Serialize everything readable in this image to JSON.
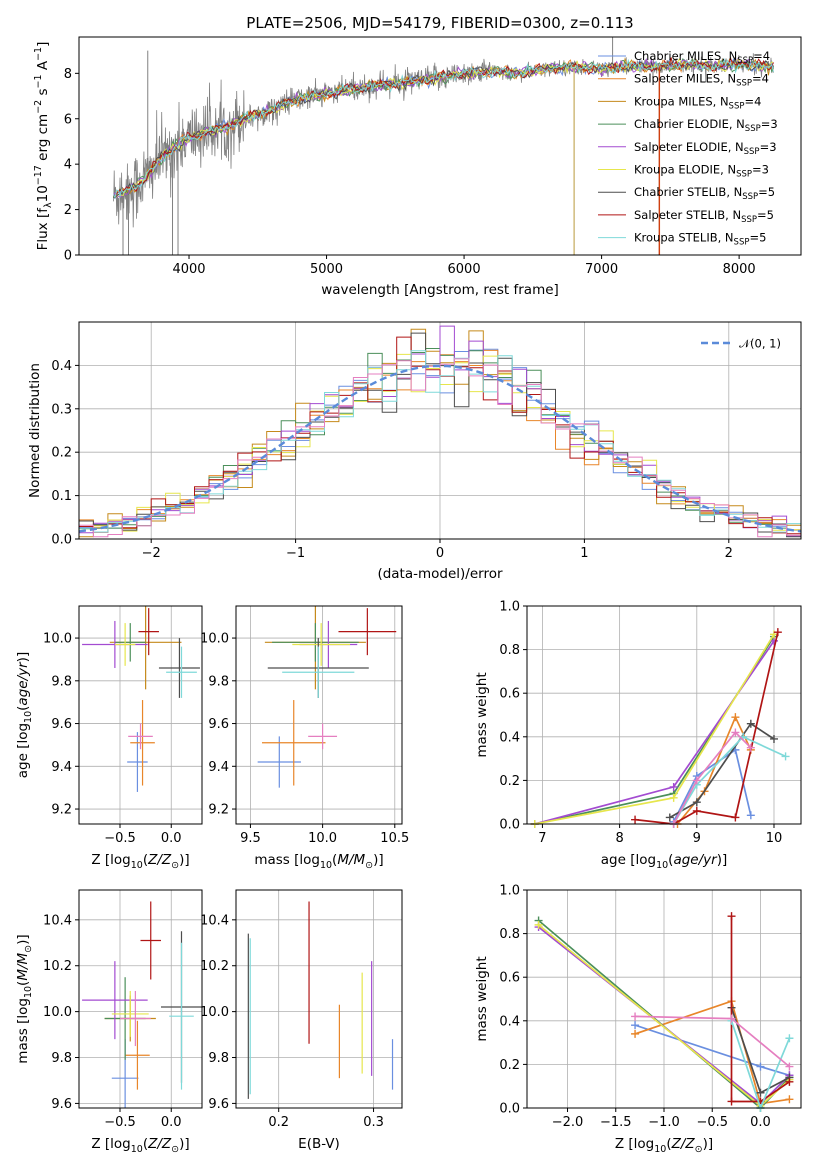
{
  "figure_title": "PLATE=2506, MJD=54179, FIBERID=0300, z=0.113",
  "colors": {
    "data_spectrum": "#808080",
    "Chabrier MILES": "#6a8fe0",
    "Salpeter MILES": "#e8862a",
    "Kroupa MILES": "#c58a1b",
    "Chabrier ELODIE": "#4b8f5a",
    "Salpeter ELODIE": "#a34bd1",
    "Kroupa ELODIE": "#e6e64c",
    "Chabrier STELIB": "#4d4d4d",
    "Salpeter STELIB": "#b01515",
    "Kroupa STELIB": "#7fd9d9",
    "pink": "#e57fc0",
    "normal": "#5b8bd9"
  },
  "chart_data": [
    {
      "id": "spectrum",
      "type": "line",
      "title": "PLATE=2506, MJD=54179, FIBERID=0300, z=0.113",
      "xlabel": "wavelength [Angstrom, rest frame]",
      "ylabel": "Flux [f_λ10^-17 erg cm^-2 s^-1 A^-1]",
      "xlim": [
        3200,
        8450
      ],
      "ylim": [
        0,
        9.6
      ],
      "xticks": [
        4000,
        5000,
        6000,
        7000,
        8000
      ],
      "yticks": [
        0,
        2,
        4,
        6,
        8
      ],
      "legend_position": "top-right",
      "legend": [
        {
          "label": "Chabrier MILES, N_SSP=4",
          "base": "Chabrier MILES, N",
          "sub": "SSP",
          "tail": "=4"
        },
        {
          "label": "Salpeter MILES, N_SSP=4",
          "base": "Salpeter MILES, N",
          "sub": "SSP",
          "tail": "=4"
        },
        {
          "label": "Kroupa MILES, N_SSP=4",
          "base": "Kroupa MILES, N",
          "sub": "SSP",
          "tail": "=4"
        },
        {
          "label": "Chabrier ELODIE, N_SSP=3",
          "base": "Chabrier ELODIE, N",
          "sub": "SSP",
          "tail": "=3"
        },
        {
          "label": "Salpeter ELODIE, N_SSP=3",
          "base": "Salpeter ELODIE, N",
          "sub": "SSP",
          "tail": "=3"
        },
        {
          "label": "Kroupa ELODIE, N_SSP=3",
          "base": "Kroupa ELODIE, N",
          "sub": "SSP",
          "tail": "=3"
        },
        {
          "label": "Chabrier STELIB, N_SSP=5",
          "base": "Chabrier STELIB, N",
          "sub": "SSP",
          "tail": "=5"
        },
        {
          "label": "Salpeter STELIB, N_SSP=5",
          "base": "Salpeter STELIB, N",
          "sub": "SSP",
          "tail": "=5"
        },
        {
          "label": "Kroupa STELIB, N_SSP=5",
          "base": "Kroupa STELIB, N",
          "sub": "SSP",
          "tail": "=5"
        }
      ],
      "data_profile_points": [
        [
          3450,
          2.6
        ],
        [
          3600,
          3.0
        ],
        [
          3700,
          3.5
        ],
        [
          3800,
          4.3
        ],
        [
          3950,
          5.0
        ],
        [
          4100,
          5.4
        ],
        [
          4250,
          5.6
        ],
        [
          4400,
          6.0
        ],
        [
          4600,
          6.4
        ],
        [
          4800,
          6.9
        ],
        [
          5000,
          7.1
        ],
        [
          5200,
          7.3
        ],
        [
          5400,
          7.5
        ],
        [
          5600,
          7.6
        ],
        [
          5800,
          7.8
        ],
        [
          6000,
          8.0
        ],
        [
          6200,
          8.1
        ],
        [
          6400,
          8.0
        ],
        [
          6600,
          8.2
        ],
        [
          6800,
          8.3
        ],
        [
          7000,
          8.2
        ],
        [
          7200,
          8.3
        ],
        [
          7400,
          8.3
        ],
        [
          7600,
          8.4
        ],
        [
          7800,
          8.3
        ],
        [
          8000,
          8.4
        ],
        [
          8250,
          8.3
        ]
      ],
      "spikes": [
        [
          3520,
          0
        ],
        [
          3560,
          0
        ],
        [
          3700,
          9.0
        ],
        [
          3880,
          0
        ],
        [
          3920,
          0
        ],
        [
          7080,
          9.6
        ],
        [
          6800,
          0
        ],
        [
          7420,
          0
        ]
      ]
    },
    {
      "id": "residuals",
      "type": "histogram",
      "xlabel": "(data-model)/error",
      "ylabel": "Normed distribution",
      "xlim": [
        -2.5,
        2.5
      ],
      "ylim": [
        0,
        0.5
      ],
      "xticks": [
        -2,
        -1,
        0,
        1,
        2
      ],
      "yticks": [
        0.0,
        0.1,
        0.2,
        0.3,
        0.4
      ],
      "legend_position": "top-right",
      "legend": [
        {
          "label": "N(0, 1)",
          "display": "𝒩(0, 1)"
        }
      ],
      "bin_width": 0.1
    },
    {
      "id": "age_vs_Z",
      "type": "scatter",
      "xlabel": "Z [log10(Z/Z⊙)]",
      "ylabel": "age [log10(age/yr)]",
      "xlim": [
        -0.9,
        0.3
      ],
      "ylim": [
        9.13,
        10.15
      ],
      "xticks": [
        -0.5,
        0.0
      ],
      "yticks": [
        9.2,
        9.4,
        9.6,
        9.8,
        10.0
      ],
      "points": [
        {
          "series": "Chabrier MILES",
          "x": -0.33,
          "y": 9.42,
          "xerr": 0.1,
          "yerr": 0.14
        },
        {
          "series": "Salpeter MILES",
          "x": -0.28,
          "y": 9.51,
          "xerr": 0.12,
          "yerr": 0.2
        },
        {
          "series": "Kroupa MILES",
          "x": -0.25,
          "y": 9.98,
          "xerr": 0.35,
          "yerr": 0.22
        },
        {
          "series": "Chabrier ELODIE",
          "x": -0.4,
          "y": 9.98,
          "xerr": 0.15,
          "yerr": 0.09
        },
        {
          "series": "Salpeter ELODIE",
          "x": -0.55,
          "y": 9.97,
          "xerr": 0.32,
          "yerr": 0.11
        },
        {
          "series": "Kroupa ELODIE",
          "x": -0.45,
          "y": 9.97,
          "xerr": 0.1,
          "yerr": 0.1
        },
        {
          "series": "Chabrier STELIB",
          "x": 0.08,
          "y": 9.86,
          "xerr": 0.2,
          "yerr": 0.14
        },
        {
          "series": "Salpeter STELIB",
          "x": -0.22,
          "y": 10.03,
          "xerr": 0.1,
          "yerr": 0.11
        },
        {
          "series": "Kroupa STELIB",
          "x": 0.1,
          "y": 9.84,
          "xerr": 0.15,
          "yerr": 0.12
        },
        {
          "series": "pink",
          "x": -0.3,
          "y": 9.54,
          "xerr": 0.12,
          "yerr": 0.06
        }
      ]
    },
    {
      "id": "age_vs_mass",
      "type": "scatter",
      "xlabel": "mass [log10(M/M⊙)]",
      "ylabel": "",
      "xlim": [
        9.4,
        10.55
      ],
      "ylim": [
        9.13,
        10.15
      ],
      "xticks": [
        9.5,
        10.0,
        10.5
      ],
      "yticks": [
        9.2,
        9.4,
        9.6,
        9.8,
        10.0
      ],
      "points": [
        {
          "series": "Chabrier MILES",
          "x": 9.7,
          "y": 9.42,
          "xerr": 0.15,
          "yerr": 0.12
        },
        {
          "series": "Salpeter MILES",
          "x": 9.8,
          "y": 9.51,
          "xerr": 0.22,
          "yerr": 0.2
        },
        {
          "series": "Kroupa MILES",
          "x": 9.95,
          "y": 9.98,
          "xerr": 0.35,
          "yerr": 0.22
        },
        {
          "series": "Chabrier ELODIE",
          "x": 9.95,
          "y": 9.98,
          "xerr": 0.3,
          "yerr": 0.09
        },
        {
          "series": "Salpeter ELODIE",
          "x": 10.04,
          "y": 9.97,
          "xerr": 0.2,
          "yerr": 0.11
        },
        {
          "series": "Kroupa ELODIE",
          "x": 9.99,
          "y": 9.97,
          "xerr": 0.2,
          "yerr": 0.1
        },
        {
          "series": "Chabrier STELIB",
          "x": 9.97,
          "y": 9.86,
          "xerr": 0.35,
          "yerr": 0.14
        },
        {
          "series": "Salpeter STELIB",
          "x": 10.31,
          "y": 10.03,
          "xerr": 0.2,
          "yerr": 0.11
        },
        {
          "series": "Kroupa STELIB",
          "x": 9.97,
          "y": 9.84,
          "xerr": 0.25,
          "yerr": 0.12
        },
        {
          "series": "pink",
          "x": 10.0,
          "y": 9.54,
          "xerr": 0.1,
          "yerr": 0.06
        }
      ]
    },
    {
      "id": "massweight_vs_age",
      "type": "line",
      "xlabel": "age [log10(age/yr)]",
      "ylabel": "mass weight",
      "xlim": [
        6.8,
        10.35
      ],
      "ylim": [
        0,
        1.0
      ],
      "xticks": [
        7,
        8,
        9,
        10
      ],
      "yticks": [
        0.0,
        0.2,
        0.4,
        0.6,
        0.8,
        1.0
      ],
      "series": [
        {
          "name": "Chabrier MILES",
          "points": [
            [
              8.7,
              0.01
            ],
            [
              9.0,
              0.22
            ],
            [
              9.5,
              0.34
            ],
            [
              9.7,
              0.04
            ]
          ]
        },
        {
          "name": "Salpeter MILES",
          "points": [
            [
              8.75,
              0.0
            ],
            [
              9.1,
              0.15
            ],
            [
              9.5,
              0.49
            ],
            [
              9.7,
              0.34
            ]
          ]
        },
        {
          "name": "Chabrier ELODIE",
          "points": [
            [
              6.9,
              0.0
            ],
            [
              8.7,
              0.14
            ],
            [
              10.0,
              0.86
            ]
          ]
        },
        {
          "name": "Salpeter ELODIE",
          "points": [
            [
              6.9,
              0.0
            ],
            [
              8.7,
              0.17
            ],
            [
              10.0,
              0.84
            ]
          ]
        },
        {
          "name": "Kroupa ELODIE",
          "points": [
            [
              6.9,
              0.0
            ],
            [
              8.7,
              0.12
            ],
            [
              10.0,
              0.87
            ]
          ]
        },
        {
          "name": "Chabrier STELIB",
          "points": [
            [
              8.65,
              0.03
            ],
            [
              9.0,
              0.1
            ],
            [
              9.7,
              0.46
            ],
            [
              10.0,
              0.39
            ]
          ]
        },
        {
          "name": "Salpeter STELIB",
          "points": [
            [
              8.2,
              0.02
            ],
            [
              8.7,
              0.0
            ],
            [
              9.0,
              0.06
            ],
            [
              9.5,
              0.03
            ],
            [
              10.05,
              0.88
            ]
          ]
        },
        {
          "name": "Kroupa STELIB",
          "points": [
            [
              8.7,
              0.0
            ],
            [
              9.0,
              0.18
            ],
            [
              9.6,
              0.4
            ],
            [
              10.15,
              0.31
            ]
          ]
        },
        {
          "name": "pink",
          "points": [
            [
              8.7,
              0.0
            ],
            [
              9.0,
              0.2
            ],
            [
              9.5,
              0.42
            ],
            [
              9.7,
              0.35
            ]
          ]
        }
      ]
    },
    {
      "id": "mass_vs_Z",
      "type": "scatter",
      "xlabel": "Z [log10(Z/Z⊙)]",
      "ylabel": "mass [log10(M/M⊙)]",
      "xlim": [
        -0.9,
        0.3
      ],
      "ylim": [
        9.58,
        10.53
      ],
      "xticks": [
        -0.5,
        0.0
      ],
      "yticks": [
        9.6,
        9.8,
        10.0,
        10.2,
        10.4
      ],
      "points": [
        {
          "series": "Chabrier MILES",
          "x": -0.45,
          "y": 9.71,
          "xerr": 0.13,
          "yerr": 0.17
        },
        {
          "series": "Salpeter MILES",
          "x": -0.33,
          "y": 9.81,
          "xerr": 0.12,
          "yerr": 0.15
        },
        {
          "series": "Kroupa MILES",
          "x": -0.4,
          "y": 9.97,
          "xerr": 0.25,
          "yerr": 0.1
        },
        {
          "series": "Chabrier ELODIE",
          "x": -0.45,
          "y": 9.97,
          "xerr": 0.2,
          "yerr": 0.18
        },
        {
          "series": "Salpeter ELODIE",
          "x": -0.55,
          "y": 10.05,
          "xerr": 0.32,
          "yerr": 0.17
        },
        {
          "series": "Kroupa ELODIE",
          "x": -0.4,
          "y": 9.99,
          "xerr": 0.18,
          "yerr": 0.1
        },
        {
          "series": "Chabrier STELIB",
          "x": 0.1,
          "y": 10.02,
          "xerr": 0.2,
          "yerr": 0.33
        },
        {
          "series": "Salpeter STELIB",
          "x": -0.2,
          "y": 10.31,
          "xerr": 0.1,
          "yerr": 0.17
        },
        {
          "series": "Kroupa STELIB",
          "x": 0.1,
          "y": 9.98,
          "xerr": 0.12,
          "yerr": 0.32
        },
        {
          "series": "pink",
          "x": -0.35,
          "y": 9.97,
          "xerr": 0.15,
          "yerr": 0.12
        }
      ]
    },
    {
      "id": "mass_vs_EBV",
      "type": "scatter",
      "xlabel": "E(B-V)",
      "ylabel": "",
      "xlim": [
        0.155,
        0.33
      ],
      "ylim": [
        9.58,
        10.53
      ],
      "xticks": [
        0.2,
        0.3
      ],
      "yticks": [
        9.6,
        9.8,
        10.0,
        10.2,
        10.4
      ],
      "points": [
        {
          "series": "Chabrier MILES",
          "x": 0.32,
          "y": 9.77,
          "xerr": 0,
          "yerr": 0.11
        },
        {
          "series": "Salpeter MILES",
          "x": 0.264,
          "y": 9.87,
          "xerr": 0,
          "yerr": 0.16
        },
        {
          "series": "Kroupa ELODIE",
          "x": 0.288,
          "y": 9.95,
          "xerr": 0,
          "yerr": 0.22
        },
        {
          "series": "Salpeter ELODIE",
          "x": 0.298,
          "y": 9.97,
          "xerr": 0,
          "yerr": 0.25
        },
        {
          "series": "Chabrier STELIB",
          "x": 0.168,
          "y": 9.98,
          "xerr": 0,
          "yerr": 0.36
        },
        {
          "series": "Salpeter STELIB",
          "x": 0.232,
          "y": 10.17,
          "xerr": 0,
          "yerr": 0.31
        },
        {
          "series": "Kroupa STELIB",
          "x": 0.17,
          "y": 9.98,
          "xerr": 0,
          "yerr": 0.34
        }
      ]
    },
    {
      "id": "massweight_vs_Z",
      "type": "line",
      "xlabel": "Z [log10(Z/Z⊙)]",
      "ylabel": "mass weight",
      "xlim": [
        -2.42,
        0.42
      ],
      "ylim": [
        0,
        1.0
      ],
      "xticks": [
        -2.0,
        -1.5,
        -1.0,
        -0.5,
        0.0
      ],
      "yticks": [
        0.0,
        0.2,
        0.4,
        0.6,
        0.8,
        1.0
      ],
      "series": [
        {
          "name": "Chabrier MILES",
          "points": [
            [
              -1.3,
              0.38
            ],
            [
              0.0,
              0.19
            ],
            [
              0.3,
              0.15
            ]
          ]
        },
        {
          "name": "Salpeter MILES",
          "points": [
            [
              -1.3,
              0.34
            ],
            [
              -0.3,
              0.49
            ],
            [
              0.0,
              0.02
            ],
            [
              0.3,
              0.04
            ]
          ]
        },
        {
          "name": "Chabrier ELODIE",
          "points": [
            [
              -2.3,
              0.86
            ],
            [
              0.0,
              0.0
            ],
            [
              0.3,
              0.14
            ]
          ]
        },
        {
          "name": "Salpeter ELODIE",
          "points": [
            [
              -2.3,
              0.83
            ],
            [
              0.0,
              0.02
            ],
            [
              0.3,
              0.15
            ]
          ]
        },
        {
          "name": "Kroupa ELODIE",
          "points": [
            [
              -2.3,
              0.84
            ],
            [
              0.0,
              0.01
            ],
            [
              0.3,
              0.13
            ]
          ]
        },
        {
          "name": "Chabrier STELIB",
          "points": [
            [
              -0.3,
              0.46
            ],
            [
              0.0,
              0.07
            ],
            [
              0.3,
              0.14
            ]
          ]
        },
        {
          "name": "Salpeter STELIB",
          "points": [
            [
              -0.3,
              0.88
            ],
            [
              -0.3,
              0.03
            ],
            [
              0.0,
              0.03
            ],
            [
              0.3,
              0.12
            ]
          ]
        },
        {
          "name": "Kroupa STELIB",
          "points": [
            [
              -0.3,
              0.4
            ],
            [
              0.0,
              0.0
            ],
            [
              0.3,
              0.32
            ]
          ]
        },
        {
          "name": "pink",
          "points": [
            [
              -1.3,
              0.42
            ],
            [
              -0.3,
              0.41
            ],
            [
              0.3,
              0.19
            ]
          ]
        }
      ]
    }
  ]
}
